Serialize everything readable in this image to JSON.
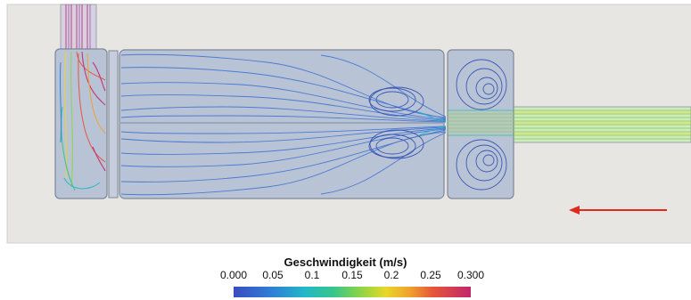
{
  "legend": {
    "title": "Geschwindigkeit (m/s)",
    "ticks": [
      "0.000",
      "0.05",
      "0.1",
      "0.15",
      "0.2",
      "0.25",
      "0.300"
    ],
    "range": [
      0.0,
      0.3
    ],
    "colormap": [
      "#3b4cc0",
      "#2f7fd6",
      "#22b8c8",
      "#36c58a",
      "#8fd544",
      "#e6d82a",
      "#f1a32c",
      "#e5553a",
      "#c2266c"
    ]
  },
  "colors": {
    "background": "#e8e6e3",
    "chamber_fill": "#b9c3d6",
    "chamber_edge": "#7d8796",
    "streamline_slow": "#3a6fd0",
    "streamline_fast": "#9bd63a",
    "arrow": "#e02a20"
  },
  "annotations": {
    "flow_direction": "right-to-left arrow"
  }
}
